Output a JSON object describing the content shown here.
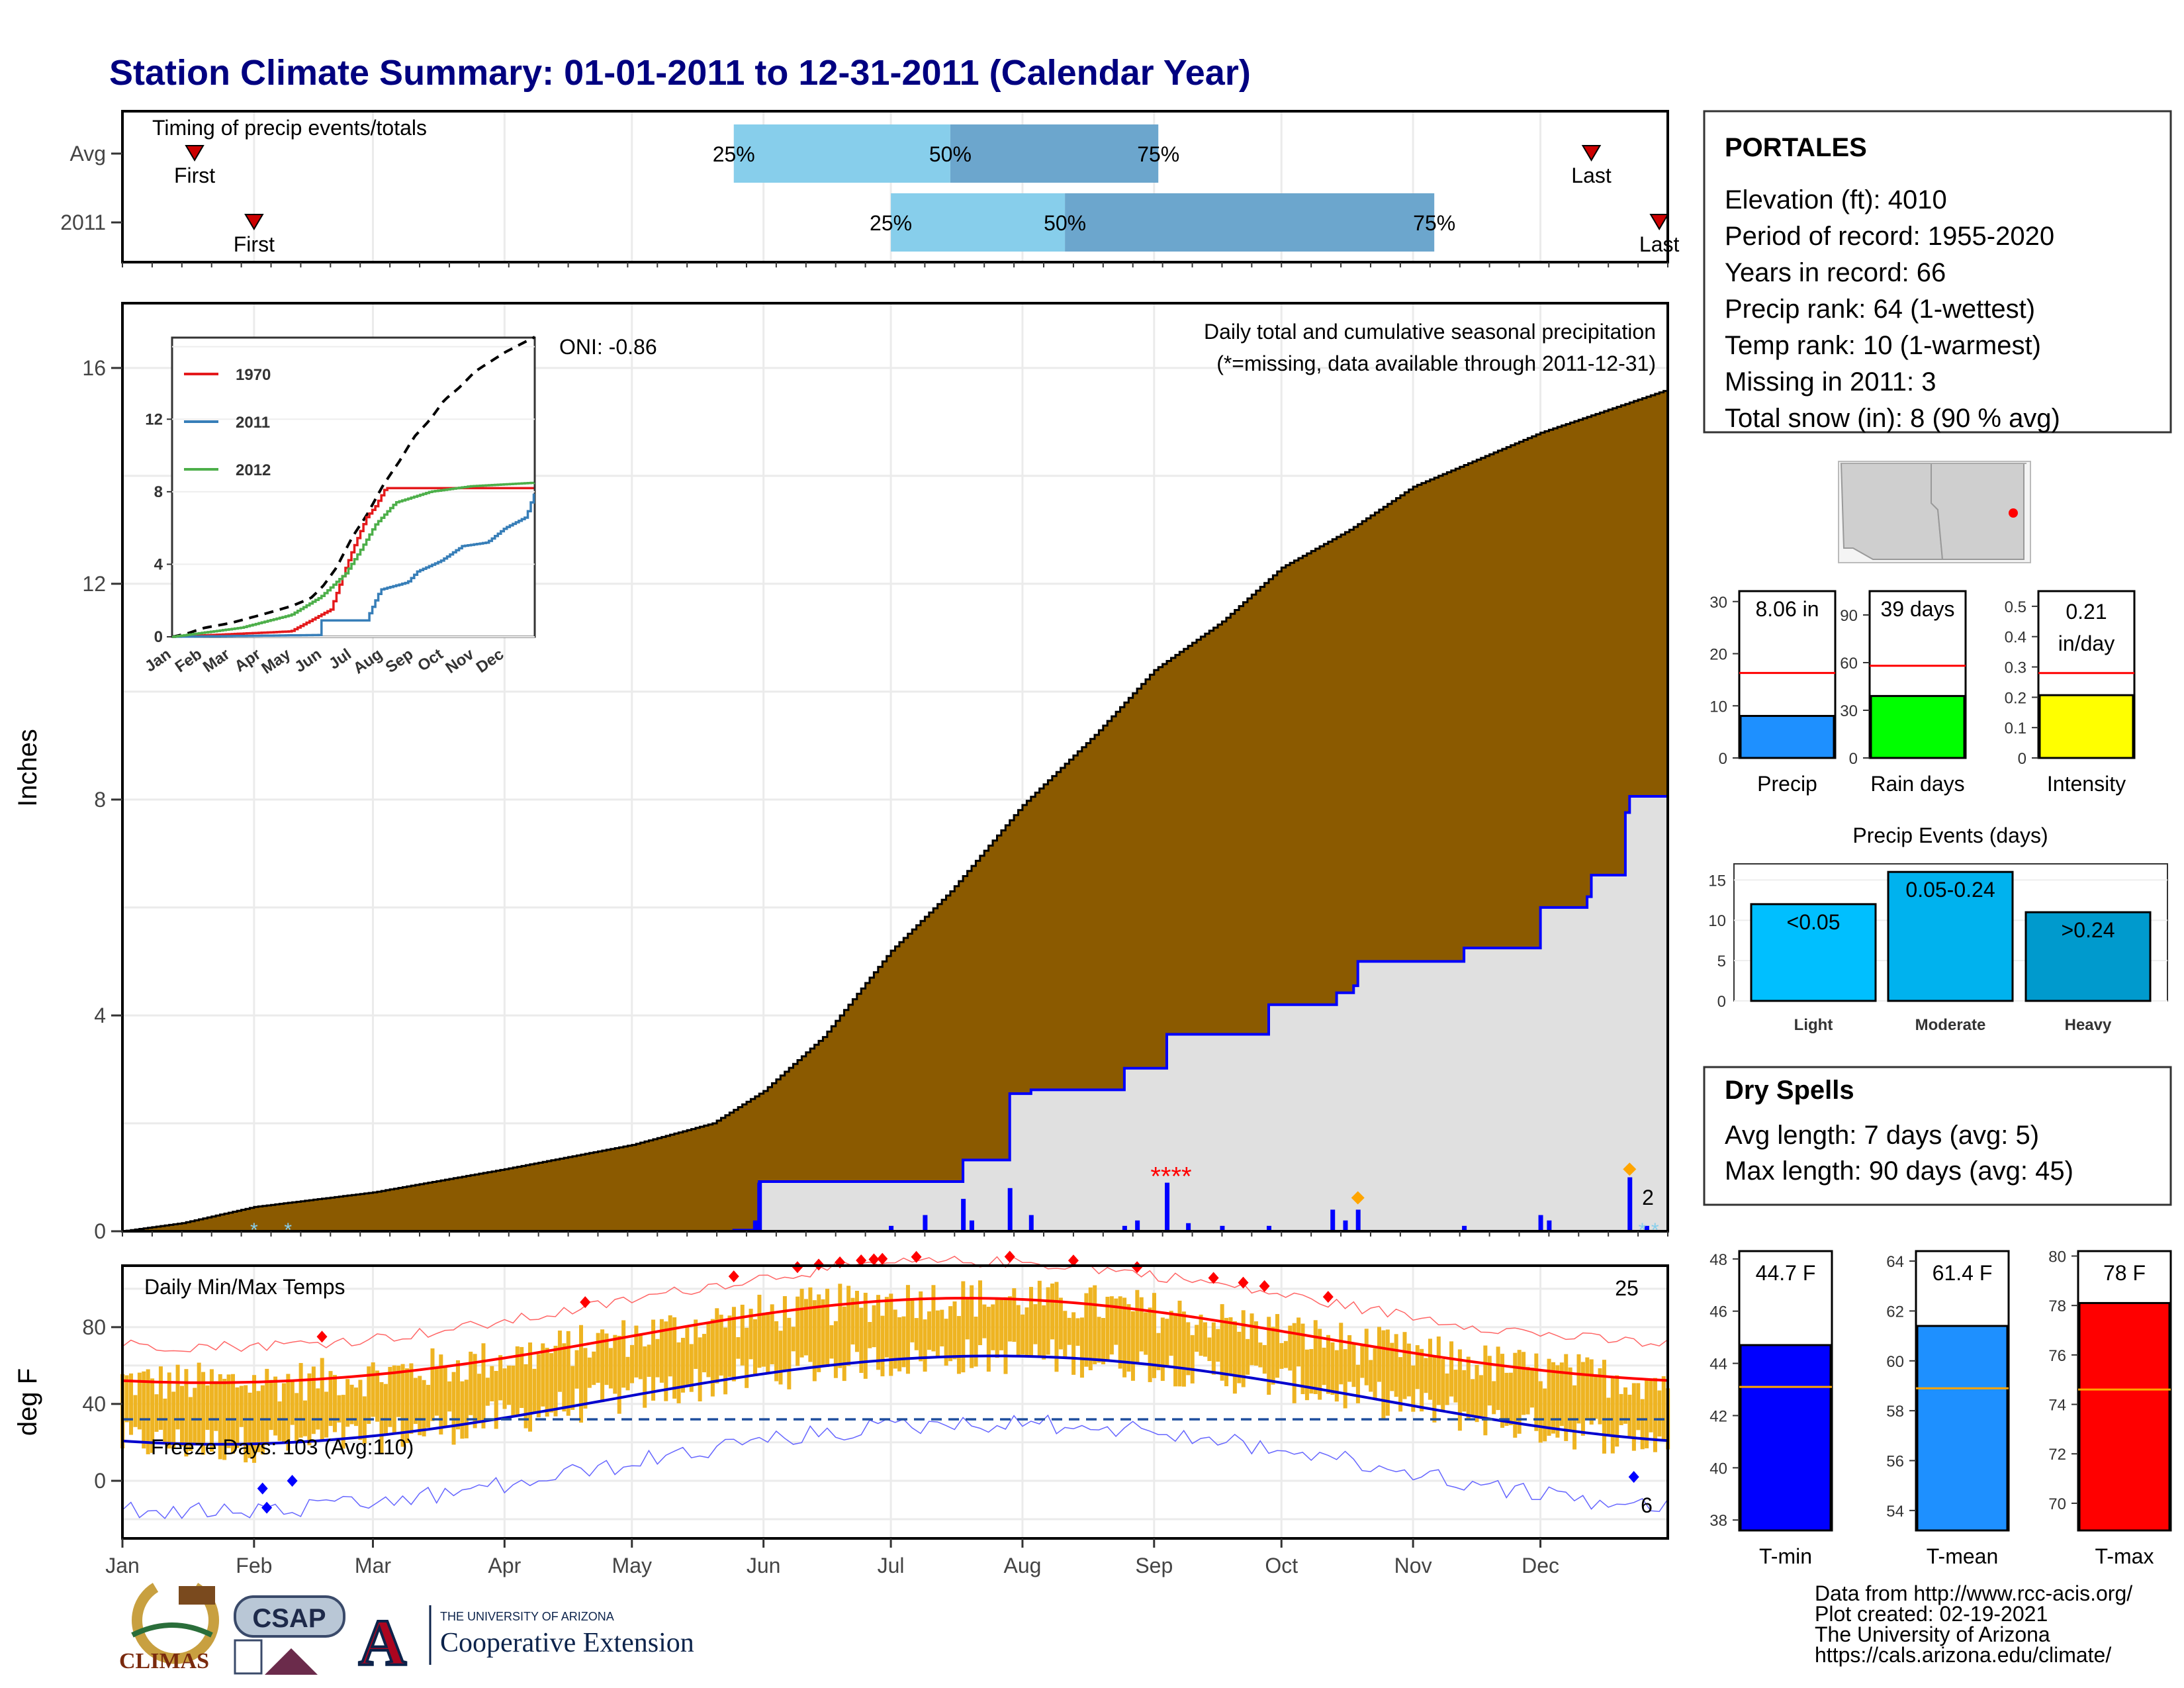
{
  "title": "Station Climate Summary: 01-01-2011 to 12-31-2011 (Calendar Year)",
  "timing": {
    "label": "Timing of precip events/totals",
    "rows": [
      {
        "name": "Avg",
        "first_doy": 18,
        "last_doy": 347,
        "p25_doy": 145,
        "p50_doy": 196,
        "p75_doy": 245
      },
      {
        "name": "2011",
        "first_doy": 32,
        "last_doy": 363,
        "p25_doy": 182,
        "p50_doy": 223,
        "p75_doy": 310
      }
    ],
    "marker_first": "First",
    "marker_last": "Last",
    "pct_labels": [
      "25%",
      "50%",
      "75%"
    ],
    "colors": {
      "light": "#87ceeb",
      "dark": "#6ca6cd",
      "marker": "#cc0000"
    }
  },
  "months": [
    "Jan",
    "Feb",
    "Mar",
    "Apr",
    "May",
    "Jun",
    "Jul",
    "Aug",
    "Sep",
    "Oct",
    "Nov",
    "Dec"
  ],
  "precip_panel": {
    "ylabel": "Inches",
    "yticks": [
      0,
      4,
      8,
      12,
      16
    ],
    "title": "Daily total and cumulative seasonal precipitation",
    "note": "(*=missing, data available through 2011-12-31)",
    "oni": "ONI: -0.86",
    "corner_count": "2",
    "colors": {
      "avg_fill": "#8b5a00",
      "year_fill": "#e0e0e0",
      "year_line": "#0000ff",
      "note": "#ee0000",
      "count": "#ffa500"
    }
  },
  "inset": {
    "yticks": [
      0,
      4,
      8,
      12
    ],
    "months": [
      "Jan",
      "Feb",
      "Mar",
      "Apr",
      "May",
      "Jun",
      "Jul",
      "Aug",
      "Sep",
      "Oct",
      "Nov",
      "Dec"
    ],
    "legend": [
      {
        "name": "1970",
        "color": "#e41a1c"
      },
      {
        "name": "2011",
        "color": "#377eb8"
      },
      {
        "name": "2012",
        "color": "#4daf4a"
      }
    ]
  },
  "temp_panel": {
    "ylabel": "deg F",
    "yticks": [
      0,
      40,
      80
    ],
    "title": "Daily Min/Max Temps",
    "freeze": "Freeze Days: 103 (Avg:110)",
    "count_hot": "25",
    "count_cold": "6",
    "colors": {
      "bars": "#eeb422",
      "max_norm": "#ff0000",
      "min_norm": "#0000cd",
      "rec_max": "#ff6666",
      "rec_min": "#6666ff",
      "freeze_line": "#1f4e9e"
    }
  },
  "station": {
    "name": "PORTALES",
    "lines": [
      "Elevation (ft): 4010",
      "Period of record: 1955-2020",
      "Years in record: 66",
      "Precip rank: 64 (1-wettest)",
      "Temp rank: 10 (1-warmest)",
      "Missing in 2011: 3",
      "Total snow (in): 8 (90 % avg)"
    ]
  },
  "summary_bars": [
    {
      "label": "Precip",
      "value_text": "8.06 in",
      "value": 8.06,
      "avg": 16.3,
      "ymax": 32,
      "yticks": [
        0,
        10,
        20,
        30
      ],
      "color": "#1e90ff"
    },
    {
      "label": "Rain days",
      "value_text": "39 days",
      "value": 39,
      "avg": 58,
      "ymax": 105,
      "yticks": [
        0,
        30,
        60,
        90
      ],
      "color": "#00ff00"
    },
    {
      "label": "Intensity",
      "value_text": "0.21 in/day",
      "value": 0.207,
      "avg": 0.28,
      "ymax": 0.55,
      "yticks": [
        0.0,
        0.1,
        0.2,
        0.3,
        0.4,
        0.5
      ],
      "color": "#ffff00"
    }
  ],
  "precip_events": {
    "title": "Precip Events (days)",
    "yticks": [
      0,
      5,
      10,
      15
    ],
    "categories": [
      "Light",
      "Moderate",
      "Heavy"
    ],
    "labels": [
      "<0.05",
      "0.05-0.24",
      ">0.24"
    ],
    "values": [
      12,
      16,
      11
    ],
    "colors": [
      "#00bfff",
      "#00b2ee",
      "#009acd"
    ]
  },
  "dry_spells": {
    "title": "Dry Spells",
    "avg_length": "Avg length: 7 days (avg: 5)",
    "max_length": "Max length: 90 days (avg: 45)",
    "color": "#a52a2a"
  },
  "temp_bars": [
    {
      "label": "T-min",
      "value_text": "44.7 F",
      "value": 44.7,
      "avg": 43.1,
      "ymin": 37.6,
      "ymax": 48.3,
      "yticks": [
        38,
        40,
        42,
        44,
        46,
        48
      ],
      "color": "#0000ff"
    },
    {
      "label": "T-mean",
      "value_text": "61.4 F",
      "value": 61.4,
      "avg": 58.9,
      "ymin": 53.2,
      "ymax": 64.4,
      "yticks": [
        54,
        56,
        58,
        60,
        62,
        64
      ],
      "color": "#1e90ff"
    },
    {
      "label": "T-max",
      "value_text": "78 F",
      "value": 78.1,
      "avg": 74.6,
      "ymin": 68.9,
      "ymax": 80.2,
      "yticks": [
        70,
        72,
        74,
        76,
        78,
        80
      ],
      "color": "#ff0000"
    }
  ],
  "footer": {
    "lines": [
      "Data from http://www.rcc-acis.org/",
      "Plot created: 02-19-2021",
      "The University of Arizona",
      "https://cals.arizona.edu/climate/"
    ],
    "logo_climas": "CLIMAS",
    "logo_csap": "CSAP",
    "logo_ua_top": "THE UNIVERSITY OF ARIZONA",
    "logo_ua_main": "Cooperative Extension",
    "logo_a": "A"
  }
}
